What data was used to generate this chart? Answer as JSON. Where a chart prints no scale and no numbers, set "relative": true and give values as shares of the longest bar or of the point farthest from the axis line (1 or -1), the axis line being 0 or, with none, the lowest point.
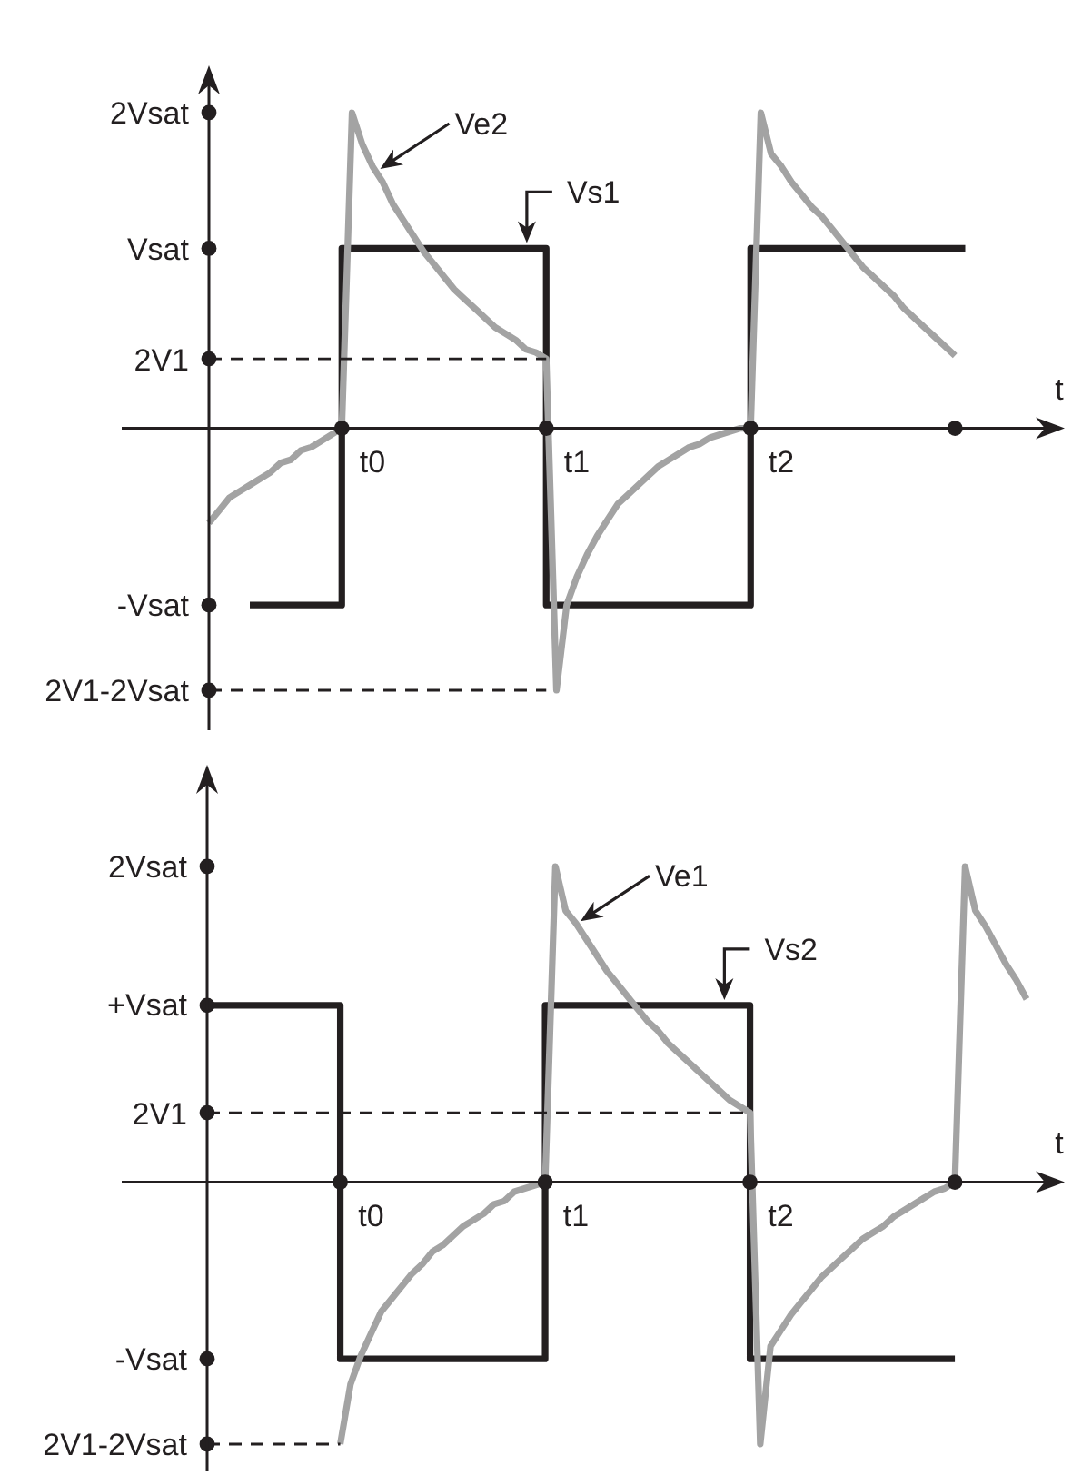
{
  "chart_data": [
    {
      "type": "line",
      "relative": true,
      "xlabel": "t",
      "marker": "none",
      "line_style": "solid",
      "categories": [
        null,
        null,
        null,
        null,
        null,
        null,
        null,
        null,
        null,
        null,
        null,
        null,
        null,
        null,
        null,
        null,
        "t0",
        null,
        null,
        null,
        null,
        null,
        null,
        null,
        null,
        null,
        null,
        null,
        null,
        null,
        null,
        null,
        null,
        null,
        null,
        null,
        "t1",
        null,
        null,
        null,
        null,
        null,
        null,
        null,
        null,
        null,
        null,
        null,
        null,
        null,
        null,
        null,
        null,
        null,
        null,
        null,
        "t2",
        null,
        null,
        null,
        null,
        null,
        null,
        null,
        null,
        null,
        null,
        null,
        null,
        null,
        null,
        null,
        null,
        null,
        null,
        null,
        null,
        null,
        null,
        null,
        null
      ],
      "annotations": [
        "2Vsat",
        "Vsat",
        "2V1",
        "-Vsat",
        "2V1-2Vsat"
      ],
      "series": [
        {
          "name": "Vs1",
          "type": "step",
          "color": "#231f20",
          "values": [
            null,
            null,
            null,
            null,
            -0.56,
            -0.56,
            -0.56,
            -0.56,
            -0.56,
            -0.56,
            -0.56,
            -0.56,
            -0.56,
            0.57,
            0.57,
            0.57,
            0.57,
            0.57,
            0.57,
            0.57,
            0.57,
            0.57,
            0.57,
            0.57,
            0.57,
            0.57,
            0.57,
            0.57,
            0.57,
            0.57,
            0.57,
            0.57,
            0.57,
            -0.56,
            -0.56,
            -0.56,
            -0.56,
            -0.56,
            -0.56,
            -0.56,
            -0.56,
            -0.56,
            -0.56,
            -0.56,
            -0.56,
            -0.56,
            -0.56,
            -0.56,
            -0.56,
            -0.56,
            -0.56,
            -0.56,
            -0.56,
            0.57,
            0.57,
            0.57,
            0.57,
            0.57,
            0.57,
            0.57,
            0.57,
            0.57,
            0.57,
            0.57,
            0.57,
            0.57,
            0.57,
            0.57,
            0.57,
            0.57,
            0.57,
            0.57,
            0.57,
            0.57,
            0.57,
            null,
            null,
            null,
            null,
            null,
            null
          ]
        },
        {
          "name": "Ve2",
          "color": "#a3a3a3",
          "values": [
            -0.3,
            -0.26,
            -0.22,
            -0.2,
            -0.18,
            -0.16,
            -0.14,
            -0.11,
            -0.1,
            -0.07,
            -0.06,
            -0.04,
            -0.02,
            0,
            1,
            0.9,
            0.83,
            0.78,
            0.71,
            0.66,
            0.61,
            0.56,
            0.52,
            0.48,
            0.44,
            0.41,
            0.38,
            0.35,
            0.32,
            0.3,
            0.28,
            0.25,
            0.24,
            0.22,
            -0.83,
            -0.56,
            -0.47,
            -0.4,
            -0.34,
            -0.29,
            -0.24,
            -0.21,
            -0.18,
            -0.15,
            -0.12,
            -0.1,
            -0.08,
            -0.06,
            -0.05,
            -0.03,
            -0.02,
            -0.01,
            0,
            0,
            1,
            0.87,
            0.83,
            0.78,
            0.74,
            0.7,
            0.67,
            0.63,
            0.59,
            0.55,
            0.51,
            0.48,
            0.45,
            0.42,
            0.38,
            0.35,
            0.32,
            0.29,
            0.26,
            0.23,
            null,
            null,
            null,
            null,
            null,
            null,
            null
          ]
        },
        {
          "color": "#231f20",
          "line_style": "dashed",
          "values": [
            0.22,
            0.22,
            0.22,
            0.22,
            0.22,
            0.22,
            0.22,
            0.22,
            0.22,
            0.22,
            0.22,
            0.22,
            0.22,
            0.22,
            0.22,
            0.22,
            0.22,
            0.22,
            0.22,
            0.22,
            0.22,
            0.22,
            0.22,
            0.22,
            0.22,
            0.22,
            0.22,
            0.22,
            0.22,
            0.22,
            0.22,
            0.22,
            0.22,
            0.22,
            null,
            null,
            null,
            null,
            null,
            null,
            null,
            null,
            null,
            null,
            null,
            null,
            null,
            null,
            null,
            null,
            null,
            null,
            null,
            null,
            null,
            null,
            null,
            null,
            null,
            null,
            null,
            null,
            null,
            null,
            null,
            null,
            null,
            null,
            null,
            null,
            null,
            null,
            null,
            null,
            null,
            null,
            null,
            null,
            null,
            null,
            null
          ]
        },
        {
          "color": "#231f20",
          "line_style": "dashed",
          "values": [
            -0.83,
            -0.83,
            -0.83,
            -0.83,
            -0.83,
            -0.83,
            -0.83,
            -0.83,
            -0.83,
            -0.83,
            -0.83,
            -0.83,
            -0.83,
            -0.83,
            -0.83,
            -0.83,
            -0.83,
            -0.83,
            -0.83,
            -0.83,
            -0.83,
            -0.83,
            -0.83,
            -0.83,
            -0.83,
            -0.83,
            -0.83,
            -0.83,
            -0.83,
            -0.83,
            -0.83,
            -0.83,
            -0.83,
            -0.83,
            null,
            null,
            null,
            null,
            null,
            null,
            null,
            null,
            null,
            null,
            null,
            null,
            null,
            null,
            null,
            null,
            null,
            null,
            null,
            null,
            null,
            null,
            null,
            null,
            null,
            null,
            null,
            null,
            null,
            null,
            null,
            null,
            null,
            null,
            null,
            null,
            null,
            null,
            null,
            null,
            null,
            null,
            null,
            null,
            null,
            null,
            null
          ]
        },
        {
          "type": "scatter",
          "marker": "circle",
          "color": "#231f20",
          "values": [
            null,
            null,
            null,
            null,
            null,
            null,
            null,
            null,
            null,
            null,
            null,
            null,
            null,
            0,
            null,
            null,
            null,
            null,
            null,
            null,
            null,
            null,
            null,
            null,
            null,
            null,
            null,
            null,
            null,
            null,
            null,
            null,
            null,
            0,
            null,
            null,
            null,
            null,
            null,
            null,
            null,
            null,
            null,
            null,
            null,
            null,
            null,
            null,
            null,
            null,
            null,
            null,
            null,
            0,
            null,
            null,
            null,
            null,
            null,
            null,
            null,
            null,
            null,
            null,
            null,
            null,
            null,
            null,
            null,
            null,
            null,
            null,
            null,
            0,
            null,
            null,
            null,
            null,
            null,
            null,
            null
          ]
        },
        {
          "type": "scatter",
          "marker": "circle",
          "color": "#231f20",
          "values": [
            1,
            null,
            null,
            null,
            null,
            null,
            null,
            null,
            null,
            null,
            null,
            null,
            null,
            null,
            null,
            null,
            null,
            null,
            null,
            null,
            null,
            null,
            null,
            null,
            null,
            null,
            null,
            null,
            null,
            null,
            null,
            null,
            null,
            null,
            null,
            null,
            null,
            null,
            null,
            null,
            null,
            null,
            null,
            null,
            null,
            null,
            null,
            null,
            null,
            null,
            null,
            null,
            null,
            null,
            null,
            null,
            null,
            null,
            null,
            null,
            null,
            null,
            null,
            null,
            null,
            null,
            null,
            null,
            null,
            null,
            null,
            null,
            null,
            null,
            null,
            null,
            null,
            null,
            null,
            null,
            null
          ]
        },
        {
          "type": "scatter",
          "marker": "circle",
          "color": "#231f20",
          "values": [
            0.57,
            null,
            null,
            null,
            null,
            null,
            null,
            null,
            null,
            null,
            null,
            null,
            null,
            null,
            null,
            null,
            null,
            null,
            null,
            null,
            null,
            null,
            null,
            null,
            null,
            null,
            null,
            null,
            null,
            null,
            null,
            null,
            null,
            null,
            null,
            null,
            null,
            null,
            null,
            null,
            null,
            null,
            null,
            null,
            null,
            null,
            null,
            null,
            null,
            null,
            null,
            null,
            null,
            null,
            null,
            null,
            null,
            null,
            null,
            null,
            null,
            null,
            null,
            null,
            null,
            null,
            null,
            null,
            null,
            null,
            null,
            null,
            null,
            null,
            null,
            null,
            null,
            null,
            null,
            null,
            null
          ]
        },
        {
          "type": "scatter",
          "marker": "circle",
          "color": "#231f20",
          "values": [
            0.22,
            null,
            null,
            null,
            null,
            null,
            null,
            null,
            null,
            null,
            null,
            null,
            null,
            null,
            null,
            null,
            null,
            null,
            null,
            null,
            null,
            null,
            null,
            null,
            null,
            null,
            null,
            null,
            null,
            null,
            null,
            null,
            null,
            null,
            null,
            null,
            null,
            null,
            null,
            null,
            null,
            null,
            null,
            null,
            null,
            null,
            null,
            null,
            null,
            null,
            null,
            null,
            null,
            null,
            null,
            null,
            null,
            null,
            null,
            null,
            null,
            null,
            null,
            null,
            null,
            null,
            null,
            null,
            null,
            null,
            null,
            null,
            null,
            null,
            null,
            null,
            null,
            null,
            null,
            null,
            null
          ]
        },
        {
          "type": "scatter",
          "marker": "circle",
          "color": "#231f20",
          "values": [
            -0.56,
            null,
            null,
            null,
            null,
            null,
            null,
            null,
            null,
            null,
            null,
            null,
            null,
            null,
            null,
            null,
            null,
            null,
            null,
            null,
            null,
            null,
            null,
            null,
            null,
            null,
            null,
            null,
            null,
            null,
            null,
            null,
            null,
            null,
            null,
            null,
            null,
            null,
            null,
            null,
            null,
            null,
            null,
            null,
            null,
            null,
            null,
            null,
            null,
            null,
            null,
            null,
            null,
            null,
            null,
            null,
            null,
            null,
            null,
            null,
            null,
            null,
            null,
            null,
            null,
            null,
            null,
            null,
            null,
            null,
            null,
            null,
            null,
            null,
            null,
            null,
            null,
            null,
            null,
            null,
            null
          ]
        },
        {
          "type": "scatter",
          "marker": "circle",
          "color": "#231f20",
          "values": [
            -0.83,
            null,
            null,
            null,
            null,
            null,
            null,
            null,
            null,
            null,
            null,
            null,
            null,
            null,
            null,
            null,
            null,
            null,
            null,
            null,
            null,
            null,
            null,
            null,
            null,
            null,
            null,
            null,
            null,
            null,
            null,
            null,
            null,
            null,
            null,
            null,
            null,
            null,
            null,
            null,
            null,
            null,
            null,
            null,
            null,
            null,
            null,
            null,
            null,
            null,
            null,
            null,
            null,
            null,
            null,
            null,
            null,
            null,
            null,
            null,
            null,
            null,
            null,
            null,
            null,
            null,
            null,
            null,
            null,
            null,
            null,
            null,
            null,
            null,
            null,
            null,
            null,
            null,
            null,
            null,
            null
          ]
        }
      ]
    },
    {
      "type": "line",
      "relative": true,
      "xlabel": "t",
      "marker": "none",
      "line_style": "solid",
      "categories": [
        null,
        null,
        null,
        null,
        null,
        null,
        null,
        null,
        null,
        null,
        null,
        null,
        null,
        null,
        null,
        null,
        "t0",
        null,
        null,
        null,
        null,
        null,
        null,
        null,
        null,
        null,
        null,
        null,
        null,
        null,
        null,
        null,
        null,
        null,
        null,
        null,
        "t1",
        null,
        null,
        null,
        null,
        null,
        null,
        null,
        null,
        null,
        null,
        null,
        null,
        null,
        null,
        null,
        null,
        null,
        null,
        null,
        "t2",
        null,
        null,
        null,
        null,
        null,
        null,
        null,
        null,
        null,
        null,
        null,
        null,
        null,
        null,
        null,
        null,
        null,
        null,
        null,
        null,
        null,
        null,
        null,
        null
      ],
      "annotations": [
        "2Vsat",
        "+Vsat",
        "2V1",
        "-Vsat",
        "2V1-2Vsat"
      ],
      "series": [
        {
          "name": "Vs2",
          "type": "step",
          "color": "#231f20",
          "values": [
            0.56,
            0.56,
            0.56,
            0.56,
            0.56,
            0.56,
            0.56,
            0.56,
            0.56,
            0.56,
            0.56,
            0.56,
            0.56,
            -0.56,
            -0.56,
            -0.56,
            -0.56,
            -0.56,
            -0.56,
            -0.56,
            -0.56,
            -0.56,
            -0.56,
            -0.56,
            -0.56,
            -0.56,
            -0.56,
            -0.56,
            -0.56,
            -0.56,
            -0.56,
            -0.56,
            -0.56,
            0.56,
            0.56,
            0.56,
            0.56,
            0.56,
            0.56,
            0.56,
            0.56,
            0.56,
            0.56,
            0.56,
            0.56,
            0.56,
            0.56,
            0.56,
            0.56,
            0.56,
            0.56,
            0.56,
            0.56,
            -0.56,
            -0.56,
            -0.56,
            -0.56,
            -0.56,
            -0.56,
            -0.56,
            -0.56,
            -0.56,
            -0.56,
            -0.56,
            -0.56,
            -0.56,
            -0.56,
            -0.56,
            -0.56,
            -0.56,
            -0.56,
            -0.56,
            -0.56,
            -0.56,
            null,
            null,
            null,
            null,
            null,
            null,
            null
          ]
        },
        {
          "name": "Ve1",
          "color": "#a3a3a3",
          "values": [
            null,
            null,
            null,
            null,
            null,
            null,
            null,
            null,
            null,
            null,
            null,
            null,
            null,
            -0.83,
            -0.64,
            -0.55,
            -0.48,
            -0.41,
            -0.37,
            -0.33,
            -0.29,
            -0.26,
            -0.22,
            -0.2,
            -0.17,
            -0.14,
            -0.12,
            -0.1,
            -0.07,
            -0.06,
            -0.03,
            -0.02,
            -0.01,
            0,
            1,
            0.86,
            0.82,
            0.77,
            0.72,
            0.67,
            0.63,
            0.59,
            0.55,
            0.51,
            0.48,
            0.44,
            0.41,
            0.38,
            0.35,
            0.32,
            0.29,
            0.26,
            0.24,
            0.22,
            -0.83,
            -0.52,
            -0.47,
            -0.42,
            -0.38,
            -0.34,
            -0.3,
            -0.27,
            -0.24,
            -0.21,
            -0.18,
            -0.16,
            -0.14,
            -0.11,
            -0.09,
            -0.07,
            -0.05,
            -0.03,
            -0.02,
            0,
            1,
            0.86,
            0.81,
            0.75,
            0.69,
            0.64,
            0.58
          ]
        },
        {
          "color": "#231f20",
          "line_style": "dashed",
          "values": [
            0.22,
            0.22,
            0.22,
            0.22,
            0.22,
            0.22,
            0.22,
            0.22,
            0.22,
            0.22,
            0.22,
            0.22,
            0.22,
            0.22,
            0.22,
            0.22,
            0.22,
            0.22,
            0.22,
            0.22,
            0.22,
            0.22,
            0.22,
            0.22,
            0.22,
            0.22,
            0.22,
            0.22,
            0.22,
            0.22,
            0.22,
            0.22,
            0.22,
            0.22,
            0.22,
            0.22,
            0.22,
            0.22,
            0.22,
            0.22,
            0.22,
            0.22,
            0.22,
            0.22,
            0.22,
            0.22,
            0.22,
            0.22,
            0.22,
            0.22,
            0.22,
            0.22,
            0.22,
            0.22,
            null,
            null,
            null,
            null,
            null,
            null,
            null,
            null,
            null,
            null,
            null,
            null,
            null,
            null,
            null,
            null,
            null,
            null,
            null,
            null,
            null,
            null,
            null,
            null,
            null,
            null,
            null
          ]
        },
        {
          "color": "#231f20",
          "line_style": "dashed",
          "values": [
            -0.83,
            -0.83,
            -0.83,
            -0.83,
            -0.83,
            -0.83,
            -0.83,
            -0.83,
            -0.83,
            -0.83,
            -0.83,
            -0.83,
            -0.83,
            -0.83,
            null,
            null,
            null,
            null,
            null,
            null,
            null,
            null,
            null,
            null,
            null,
            null,
            null,
            null,
            null,
            null,
            null,
            null,
            null,
            null,
            null,
            null,
            null,
            null,
            null,
            null,
            null,
            null,
            null,
            null,
            null,
            null,
            null,
            null,
            null,
            null,
            null,
            null,
            null,
            null,
            null,
            null,
            null,
            null,
            null,
            null,
            null,
            null,
            null,
            null,
            null,
            null,
            null,
            null,
            null,
            null,
            null,
            null,
            null,
            null,
            null,
            null,
            null,
            null,
            null,
            null,
            null
          ]
        },
        {
          "type": "scatter",
          "marker": "circle",
          "color": "#231f20",
          "values": [
            null,
            null,
            null,
            null,
            null,
            null,
            null,
            null,
            null,
            null,
            null,
            null,
            null,
            0,
            null,
            null,
            null,
            null,
            null,
            null,
            null,
            null,
            null,
            null,
            null,
            null,
            null,
            null,
            null,
            null,
            null,
            null,
            null,
            0,
            null,
            null,
            null,
            null,
            null,
            null,
            null,
            null,
            null,
            null,
            null,
            null,
            null,
            null,
            null,
            null,
            null,
            null,
            null,
            0,
            null,
            null,
            null,
            null,
            null,
            null,
            null,
            null,
            null,
            null,
            null,
            null,
            null,
            null,
            null,
            null,
            null,
            null,
            null,
            0,
            null,
            null,
            null,
            null,
            null,
            null,
            null
          ]
        },
        {
          "type": "scatter",
          "marker": "circle",
          "color": "#231f20",
          "values": [
            1,
            null,
            null,
            null,
            null,
            null,
            null,
            null,
            null,
            null,
            null,
            null,
            null,
            null,
            null,
            null,
            null,
            null,
            null,
            null,
            null,
            null,
            null,
            null,
            null,
            null,
            null,
            null,
            null,
            null,
            null,
            null,
            null,
            null,
            null,
            null,
            null,
            null,
            null,
            null,
            null,
            null,
            null,
            null,
            null,
            null,
            null,
            null,
            null,
            null,
            null,
            null,
            null,
            null,
            null,
            null,
            null,
            null,
            null,
            null,
            null,
            null,
            null,
            null,
            null,
            null,
            null,
            null,
            null,
            null,
            null,
            null,
            null,
            null,
            null,
            null,
            null,
            null,
            null,
            null,
            null
          ]
        },
        {
          "type": "scatter",
          "marker": "circle",
          "color": "#231f20",
          "values": [
            0.56,
            null,
            null,
            null,
            null,
            null,
            null,
            null,
            null,
            null,
            null,
            null,
            null,
            null,
            null,
            null,
            null,
            null,
            null,
            null,
            null,
            null,
            null,
            null,
            null,
            null,
            null,
            null,
            null,
            null,
            null,
            null,
            null,
            null,
            null,
            null,
            null,
            null,
            null,
            null,
            null,
            null,
            null,
            null,
            null,
            null,
            null,
            null,
            null,
            null,
            null,
            null,
            null,
            null,
            null,
            null,
            null,
            null,
            null,
            null,
            null,
            null,
            null,
            null,
            null,
            null,
            null,
            null,
            null,
            null,
            null,
            null,
            null,
            null,
            null,
            null,
            null,
            null,
            null,
            null,
            null
          ]
        },
        {
          "type": "scatter",
          "marker": "circle",
          "color": "#231f20",
          "values": [
            0.22,
            null,
            null,
            null,
            null,
            null,
            null,
            null,
            null,
            null,
            null,
            null,
            null,
            null,
            null,
            null,
            null,
            null,
            null,
            null,
            null,
            null,
            null,
            null,
            null,
            null,
            null,
            null,
            null,
            null,
            null,
            null,
            null,
            null,
            null,
            null,
            null,
            null,
            null,
            null,
            null,
            null,
            null,
            null,
            null,
            null,
            null,
            null,
            null,
            null,
            null,
            null,
            null,
            null,
            null,
            null,
            null,
            null,
            null,
            null,
            null,
            null,
            null,
            null,
            null,
            null,
            null,
            null,
            null,
            null,
            null,
            null,
            null,
            null,
            null,
            null,
            null,
            null,
            null,
            null,
            null
          ]
        },
        {
          "type": "scatter",
          "marker": "circle",
          "color": "#231f20",
          "values": [
            -0.56,
            null,
            null,
            null,
            null,
            null,
            null,
            null,
            null,
            null,
            null,
            null,
            null,
            null,
            null,
            null,
            null,
            null,
            null,
            null,
            null,
            null,
            null,
            null,
            null,
            null,
            null,
            null,
            null,
            null,
            null,
            null,
            null,
            null,
            null,
            null,
            null,
            null,
            null,
            null,
            null,
            null,
            null,
            null,
            null,
            null,
            null,
            null,
            null,
            null,
            null,
            null,
            null,
            null,
            null,
            null,
            null,
            null,
            null,
            null,
            null,
            null,
            null,
            null,
            null,
            null,
            null,
            null,
            null,
            null,
            null,
            null,
            null,
            null,
            null,
            null,
            null,
            null,
            null,
            null,
            null
          ]
        },
        {
          "type": "scatter",
          "marker": "circle",
          "color": "#231f20",
          "values": [
            -0.83,
            null,
            null,
            null,
            null,
            null,
            null,
            null,
            null,
            null,
            null,
            null,
            null,
            null,
            null,
            null,
            null,
            null,
            null,
            null,
            null,
            null,
            null,
            null,
            null,
            null,
            null,
            null,
            null,
            null,
            null,
            null,
            null,
            null,
            null,
            null,
            null,
            null,
            null,
            null,
            null,
            null,
            null,
            null,
            null,
            null,
            null,
            null,
            null,
            null,
            null,
            null,
            null,
            null,
            null,
            null,
            null,
            null,
            null,
            null,
            null,
            null,
            null,
            null,
            null,
            null,
            null,
            null,
            null,
            null,
            null,
            null,
            null,
            null,
            null,
            null,
            null,
            null,
            null,
            null,
            null
          ]
        }
      ]
    }
  ]
}
